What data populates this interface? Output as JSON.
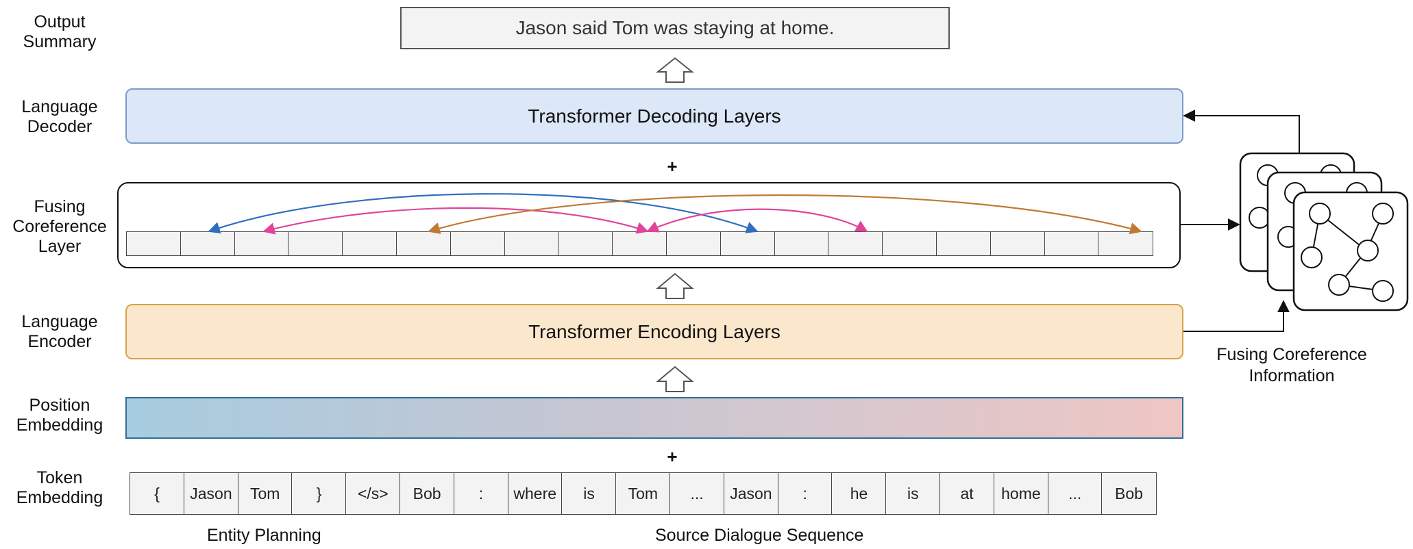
{
  "rows": {
    "output": [
      "Output",
      "Summary"
    ],
    "decoder": [
      "Language",
      "Decoder"
    ],
    "fusing": [
      "Fusing",
      "Coreference",
      "Layer"
    ],
    "encoder": [
      "Language",
      "Encoder"
    ],
    "position": [
      "Position",
      "Embedding"
    ],
    "token": [
      "Token",
      "Embedding"
    ]
  },
  "output_text": "Jason said Tom was staying at home.",
  "decoder_label": "Transformer Decoding Layers",
  "encoder_label": "Transformer Encoding Layers",
  "plus_symbol": "+",
  "tokens": [
    "{",
    "Jason",
    "Tom",
    "}",
    "</s>",
    "Bob",
    ":",
    "where",
    "is",
    "Tom",
    "...",
    "Jason",
    ":",
    "he",
    "is",
    "at",
    "home",
    "...",
    "Bob"
  ],
  "captions": {
    "entity_planning": "Entity Planning",
    "source_dialogue": "Source Dialogue Sequence",
    "fusing_info": [
      "Fusing Coreference",
      "Information"
    ]
  },
  "colors": {
    "blue_link": "#2f6fc0",
    "pink_link": "#e0449a",
    "orange_link": "#c07a33"
  }
}
